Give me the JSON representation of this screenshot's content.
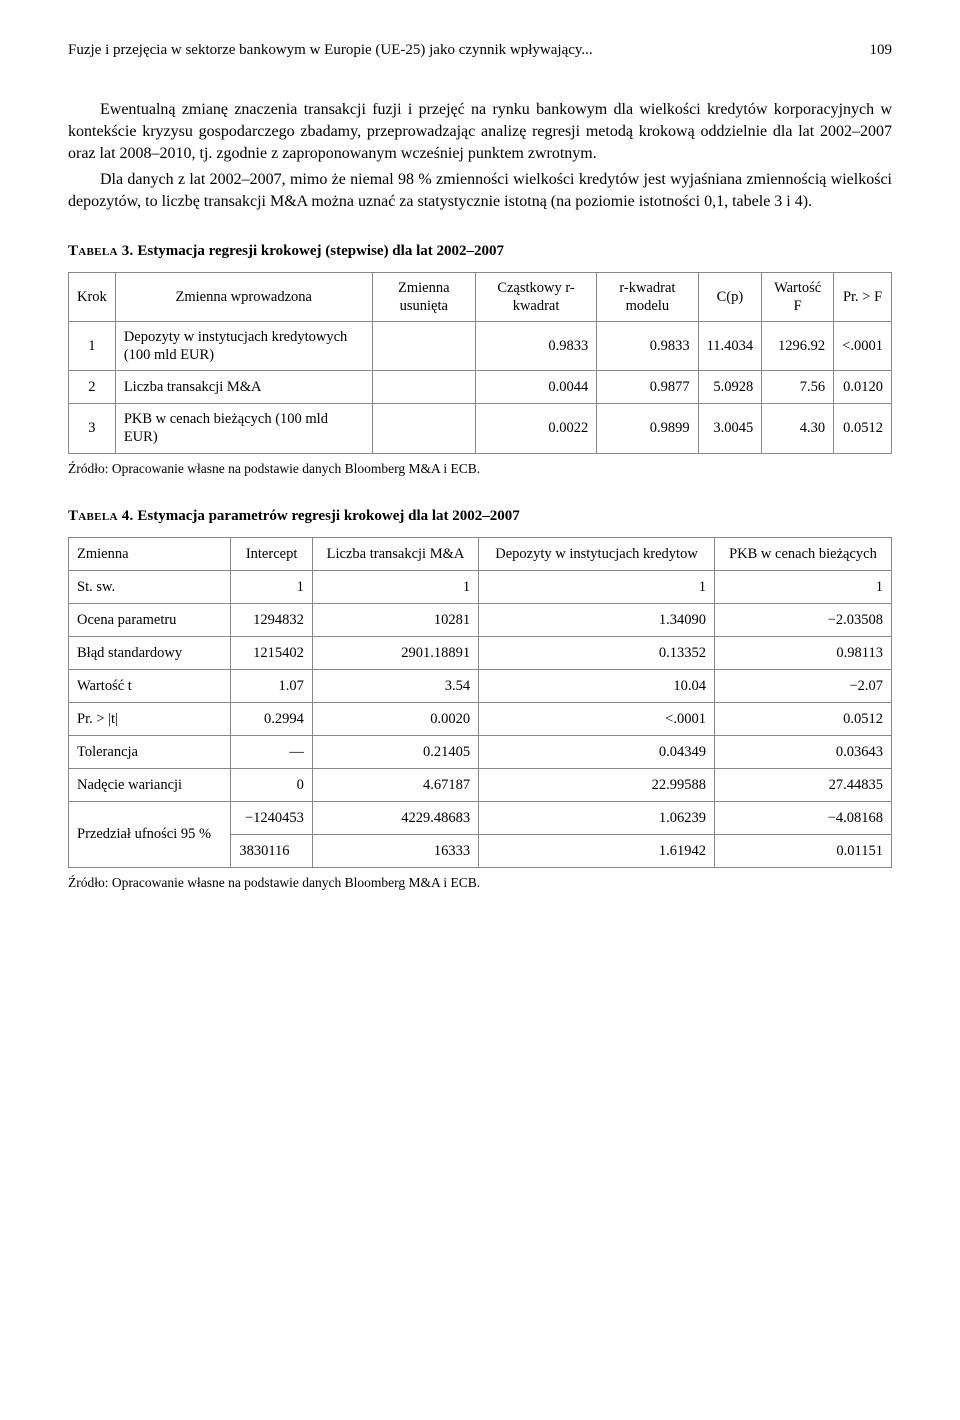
{
  "header": {
    "running_title": "Fuzje i przejęcia w sektorze bankowym w Europie (UE-25) jako czynnik wpływający...",
    "page_number": "109"
  },
  "paragraphs": {
    "p1": "Ewentualną zmianę znaczenia transakcji fuzji i przejęć na rynku bankowym dla wielkości kredytów korporacyjnych w kontekście kryzysu gospodarczego zbadamy, przeprowadzając analizę regresji metodą krokową oddzielnie dla lat 2002–2007 oraz lat 2008–2010, tj. zgodnie z zaproponowanym wcześniej punktem zwrotnym.",
    "p2": "Dla danych z lat 2002–2007, mimo że niemal 98 % zmienności wielkości kredytów jest wyjaśniana zmiennością wielkości depozytów, to liczbę transakcji M&A można uznać za statystycznie istotną (na poziomie istotności 0,1, tabele 3 i 4)."
  },
  "table3": {
    "label": "Tabela 3.",
    "title": "Estymacja regresji krokowej (stepwise) dla lat 2002–2007",
    "headers": [
      "Krok",
      "Zmienna wprowadzona",
      "Zmienna usunięta",
      "Cząstkowy r-kwadrat",
      "r-kwadrat modelu",
      "C(p)",
      "Wartość F",
      "Pr. > F"
    ],
    "rows": [
      {
        "krok": "1",
        "zm_wpr": "Depozyty w instytucjach kredytowych (100 mld EUR)",
        "zm_us": "",
        "partial_r2": "0.9833",
        "r2_model": "0.9833",
        "cp": "11.4034",
        "f": "1296.92",
        "pr": "<.0001"
      },
      {
        "krok": "2",
        "zm_wpr": "Liczba transakcji M&A",
        "zm_us": "",
        "partial_r2": "0.0044",
        "r2_model": "0.9877",
        "cp": "5.0928",
        "f": "7.56",
        "pr": "0.0120"
      },
      {
        "krok": "3",
        "zm_wpr": "PKB w cenach bieżących (100 mld EUR)",
        "zm_us": "",
        "partial_r2": "0.0022",
        "r2_model": "0.9899",
        "cp": "3.0045",
        "f": "4.30",
        "pr": "0.0512"
      }
    ],
    "source": "Źródło: Opracowanie własne na podstawie danych Bloomberg M&A i ECB."
  },
  "table4": {
    "label": "Tabela 4.",
    "title": "Estymacja parametrów regresji krokowej dla lat 2002–2007",
    "headers": [
      "Zmienna",
      "Intercept",
      "Liczba transakcji M&A",
      "Depozyty w instytucjach kredytow",
      "PKB w cenach bieżących"
    ],
    "rows": [
      {
        "name": "St. sw.",
        "c1": "1",
        "c2": "1",
        "c3": "1",
        "c4": "1"
      },
      {
        "name": "Ocena parametru",
        "c1": "1294832",
        "c2": "10281",
        "c3": "1.34090",
        "c4": "−2.03508"
      },
      {
        "name": "Błąd standardowy",
        "c1": "1215402",
        "c2": "2901.18891",
        "c3": "0.13352",
        "c4": "0.98113"
      },
      {
        "name": "Wartość t",
        "c1": "1.07",
        "c2": "3.54",
        "c3": "10.04",
        "c4": "−2.07"
      },
      {
        "name": "Pr. > |t|",
        "c1": "0.2994",
        "c2": "0.0020",
        "c3": "<.0001",
        "c4": "0.0512"
      },
      {
        "name": "Tolerancja",
        "c1": "—",
        "c2": "0.21405",
        "c3": "0.04349",
        "c4": "0.03643"
      },
      {
        "name": "Nadęcie wariancji",
        "c1": "0",
        "c2": "4.67187",
        "c3": "22.99588",
        "c4": "27.44835"
      }
    ],
    "ci_label": "Przedział ufności 95 %",
    "ci_rows": [
      {
        "c1": "−1240453",
        "c2": "4229.48683",
        "c3": "1.06239",
        "c4": "−4.08168"
      },
      {
        "c1": "3830116",
        "c2": "16333",
        "c3": "1.61942",
        "c4": "0.01151"
      }
    ],
    "source": "Źródło: Opracowanie własne na podstawie danych Bloomberg M&A i ECB."
  }
}
